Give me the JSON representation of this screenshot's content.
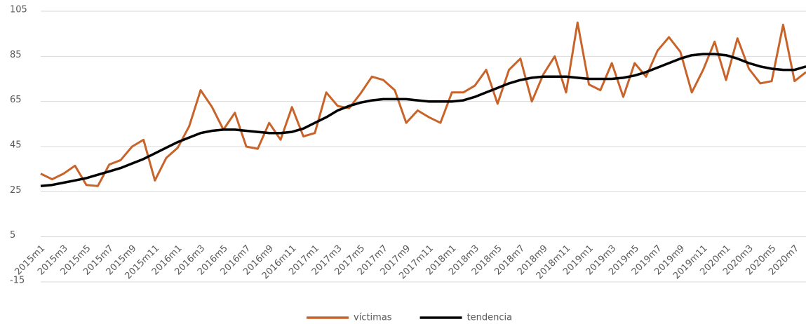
{
  "chart_data": {
    "type": "line",
    "categories": [
      "2015m1",
      null,
      "2015m3",
      null,
      "2015m5",
      null,
      "2015m7",
      null,
      "2015m9",
      null,
      "2015m11",
      null,
      "2016m1",
      null,
      "2016m3",
      null,
      "2016m5",
      null,
      "2016m7",
      null,
      "2016m9",
      null,
      "2016m11",
      null,
      "2017m1",
      null,
      "2017m3",
      null,
      "2017m5",
      null,
      "2017m7",
      null,
      "2017m9",
      null,
      "2017m11",
      null,
      "2018m1",
      null,
      "2018m3",
      null,
      "2018m5",
      null,
      "2018m7",
      null,
      "2018m9",
      null,
      "2018m11",
      null,
      "2019m1",
      null,
      "2019m3",
      null,
      "2019m5",
      null,
      "2019m7",
      null,
      "2019m9",
      null,
      "2019m11",
      null,
      "2020m1",
      null,
      "2020m3",
      null,
      "2020m5",
      null,
      "2020m7",
      null
    ],
    "series": [
      {
        "name": "víctimas",
        "color": "#c8642a",
        "values": [
          33,
          30.5,
          33,
          36.5,
          28,
          27.5,
          37,
          39,
          45,
          48,
          30,
          40,
          44.5,
          54,
          70,
          62.5,
          52.5,
          60,
          45,
          44,
          55.5,
          48,
          62.5,
          49.5,
          51,
          69,
          63,
          62,
          68.5,
          76,
          74.5,
          70,
          55.5,
          61,
          58,
          55.5,
          69,
          69,
          72,
          79,
          64,
          79,
          84,
          65,
          77,
          85,
          69,
          100,
          72.5,
          70,
          82,
          67,
          82,
          76,
          87.5,
          93.5,
          87,
          69,
          79,
          91.5,
          74.5,
          93,
          79.5,
          73,
          74,
          99,
          74,
          78
        ]
      },
      {
        "name": "tendencia",
        "color": "#000000",
        "values": [
          27.5,
          28,
          29,
          30,
          31,
          32.5,
          34,
          35.5,
          37.5,
          39.5,
          42,
          44.5,
          47,
          49,
          51,
          52,
          52.5,
          52.5,
          52,
          51.5,
          51,
          51,
          51.5,
          53,
          55.5,
          58,
          61,
          63,
          64.5,
          65.5,
          66,
          66,
          66,
          65.5,
          65,
          65,
          65,
          65.5,
          67,
          69,
          71,
          73,
          74.5,
          75.5,
          76,
          76,
          76,
          75.5,
          75,
          75,
          75,
          75.5,
          76.5,
          78,
          80,
          82,
          84,
          85.5,
          86,
          86,
          85.5,
          84,
          82,
          80.5,
          79.5,
          79,
          79,
          80.5
        ]
      }
    ],
    "ylim": [
      -15,
      105
    ],
    "yticks": [
      -15,
      5,
      25,
      45,
      65,
      85,
      105
    ],
    "grid": true,
    "legend": "bottom"
  }
}
